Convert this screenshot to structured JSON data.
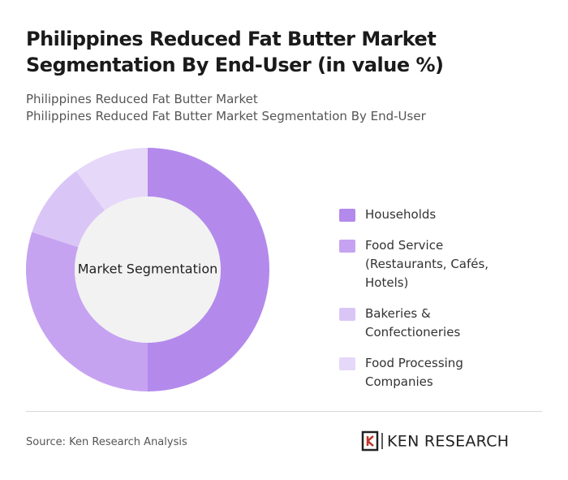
{
  "chart_data": {
    "type": "donut",
    "title": "Philippines Reduced Fat Butter Market Segmentation By End-User (in value %)",
    "subtitle": [
      "Philippines Reduced Fat Butter Market",
      "Philippines Reduced Fat Butter Market Segmentation By End-User"
    ],
    "center_label": "Market Segmentation",
    "categories": [
      "Households",
      "Food Service (Restaurants, Cafés, Hotels)",
      "Bakeries & Confectioneries",
      "Food Processing Companies"
    ],
    "values": [
      50,
      30,
      10,
      10
    ],
    "colors": [
      "#b38aec",
      "#c6a3f1",
      "#dac6f6",
      "#e6d8f9"
    ]
  },
  "source": "Source: Ken Research Analysis",
  "brand": "KEN RESEARCH"
}
